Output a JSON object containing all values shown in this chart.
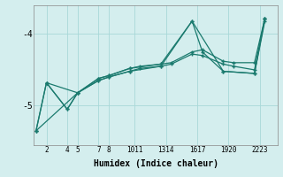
{
  "xlabel": "Humidex (Indice chaleur)",
  "background_color": "#d4eeee",
  "line_color": "#1a7a6e",
  "grid_color": "#a8d8d8",
  "xtick_labels": [
    "2",
    "4",
    "5",
    "7",
    "8",
    "1011",
    "1314",
    "1617",
    "1920",
    "2223"
  ],
  "xtick_positions": [
    2,
    4,
    5,
    7,
    8,
    10.5,
    13.5,
    16.5,
    19.5,
    22.5
  ],
  "ytick_labels": [
    "-4",
    "-5"
  ],
  "ytick_positions": [
    -4,
    -5
  ],
  "xlim": [
    0.8,
    24.2
  ],
  "ylim": [
    -5.55,
    -3.6
  ],
  "series": [
    {
      "x": [
        1,
        2,
        4,
        5,
        7,
        8,
        10,
        11,
        13,
        14,
        16,
        17,
        19,
        20,
        22,
        23
      ],
      "y": [
        -5.35,
        -4.68,
        -5.05,
        -4.82,
        -4.62,
        -4.58,
        -4.48,
        -4.45,
        -4.42,
        -4.4,
        -4.25,
        -4.22,
        -4.38,
        -4.4,
        -4.4,
        -3.78
      ]
    },
    {
      "x": [
        1,
        2,
        4,
        5,
        7,
        8,
        10,
        11,
        13,
        14,
        16,
        17,
        19,
        20,
        22,
        23
      ],
      "y": [
        -5.35,
        -4.68,
        -5.05,
        -4.82,
        -4.65,
        -4.6,
        -4.52,
        -4.48,
        -4.45,
        -4.42,
        -4.28,
        -4.3,
        -4.42,
        -4.45,
        -4.5,
        -3.78
      ]
    },
    {
      "x": [
        2,
        5,
        7,
        8,
        10,
        13,
        16,
        17,
        19,
        22,
        23
      ],
      "y": [
        -4.68,
        -4.82,
        -4.62,
        -4.58,
        -4.48,
        -4.42,
        -3.82,
        -4.25,
        -4.52,
        -4.55,
        -3.82
      ]
    },
    {
      "x": [
        1,
        5,
        7,
        8,
        10,
        13,
        16,
        19,
        22,
        23
      ],
      "y": [
        -5.35,
        -4.82,
        -4.65,
        -4.6,
        -4.52,
        -4.45,
        -3.82,
        -4.52,
        -4.55,
        -3.78
      ]
    }
  ]
}
